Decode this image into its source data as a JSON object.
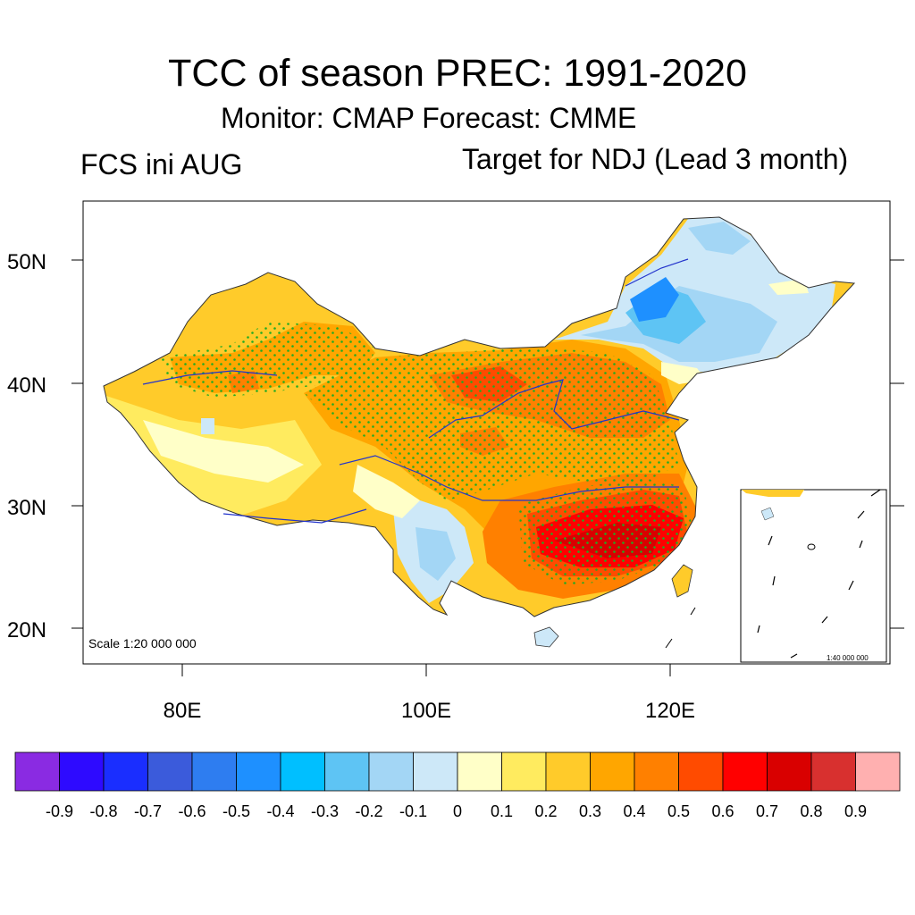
{
  "header": {
    "title": "TCC of season PREC: 1991-2020",
    "subtitle": "Monitor: CMAP   Forecast: CMME",
    "left_label": "FCS ini AUG",
    "right_label": "Target for NDJ (Lead 3 month)"
  },
  "map": {
    "lat_ticks": [
      "50N",
      "40N",
      "30N",
      "20N"
    ],
    "lon_ticks": [
      "80E",
      "100E",
      "120E"
    ],
    "scale_text": "Scale 1:20 000 000",
    "inset_scale_text": "1:40 000 000",
    "stipple_color": "#22aa22"
  },
  "colorbar": {
    "colors": [
      "#8a2be2",
      "#2e0aff",
      "#1a2eff",
      "#3b5bdb",
      "#2e7df0",
      "#1e90ff",
      "#00bfff",
      "#5ec4f4",
      "#a3d6f5",
      "#cde8f8",
      "#ffffc8",
      "#ffeb5f",
      "#ffcb2a",
      "#ffa600",
      "#ff8000",
      "#ff4b00",
      "#ff0000",
      "#d90000",
      "#d8302f",
      "#ffb0b0"
    ],
    "labels": [
      "-0.9",
      "-0.8",
      "-0.7",
      "-0.6",
      "-0.5",
      "-0.4",
      "-0.3",
      "-0.2",
      "-0.1",
      "0",
      "0.1",
      "0.2",
      "0.3",
      "0.4",
      "0.5",
      "0.6",
      "0.7",
      "0.8",
      "0.9"
    ]
  }
}
